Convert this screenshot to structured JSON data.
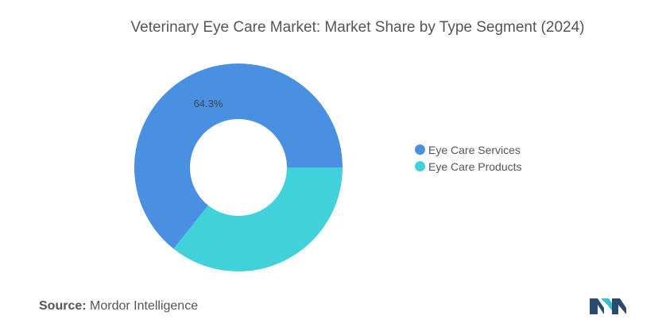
{
  "chart_data": {
    "type": "pie",
    "style": "donut",
    "title": "Veterinary Eye Care Market: Market Share by Type Segment (2024)",
    "categories": [
      "Eye Care Services",
      "Eye Care Products"
    ],
    "values": [
      64.3,
      35.7
    ],
    "data_labels": [
      "64.3%",
      ""
    ],
    "colors": [
      "#4a90e2",
      "#40d1db"
    ],
    "legend_position": "right"
  },
  "source": {
    "label": "Source:",
    "text": "Mordor Intelligence"
  },
  "logo": {
    "icon": "mordor-intelligence-logo",
    "colors": [
      "#2c4a6e",
      "#3bbfc8"
    ]
  }
}
